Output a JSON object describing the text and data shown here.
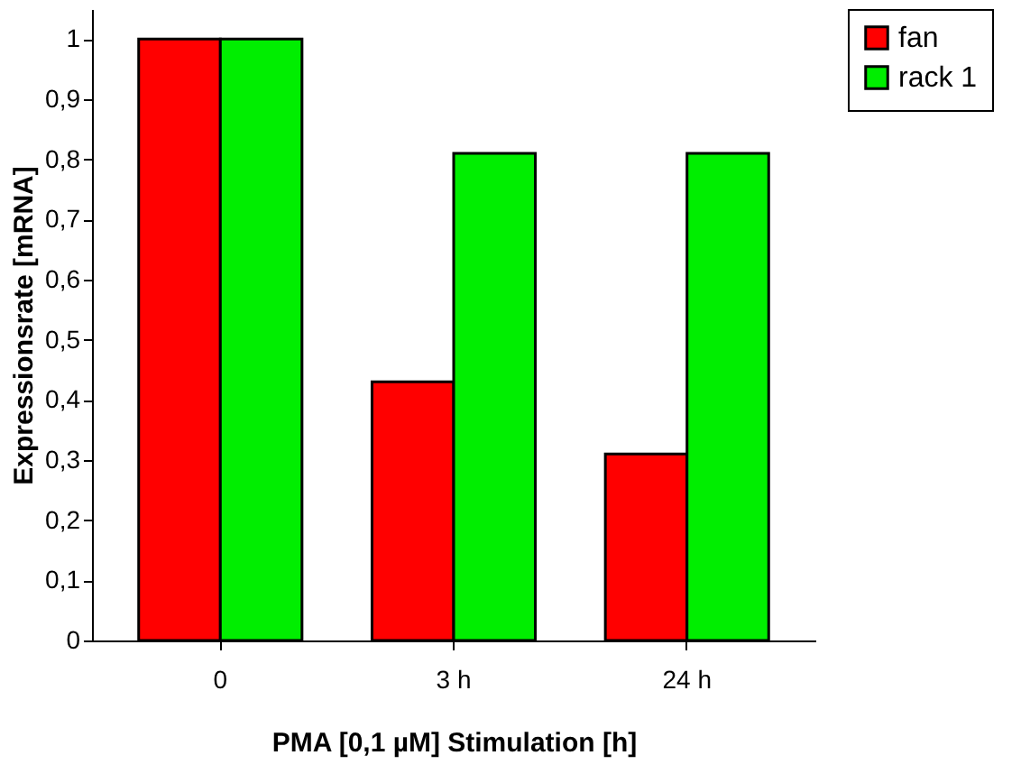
{
  "chart_data": {
    "type": "bar",
    "xlabel": "PMA [0,1 µM] Stimulation [h]",
    "ylabel": "Expressionsrate [mRNA]",
    "categories": [
      "0",
      "3 h",
      "24 h"
    ],
    "series": [
      {
        "name": "fan",
        "color": "#ff0000",
        "values": [
          1.0,
          0.43,
          0.31
        ]
      },
      {
        "name": "rack 1",
        "color": "#00ee00",
        "values": [
          1.0,
          0.81,
          0.81
        ]
      }
    ],
    "ylim": [
      0,
      1.05
    ],
    "yticks": [
      0,
      {
        "value": 0.1,
        "label": "0,1"
      },
      {
        "value": 0.2,
        "label": "0,2"
      },
      {
        "value": 0.3,
        "label": "0,3"
      },
      {
        "value": 0.4,
        "label": "0,4"
      },
      {
        "value": 0.5,
        "label": "0,5"
      },
      {
        "value": 0.6,
        "label": "0,6"
      },
      {
        "value": 0.7,
        "label": "0,7"
      },
      {
        "value": 0.8,
        "label": "0,8"
      },
      {
        "value": 0.9,
        "label": "0,9"
      },
      1
    ],
    "grid": false,
    "legend": "right"
  }
}
